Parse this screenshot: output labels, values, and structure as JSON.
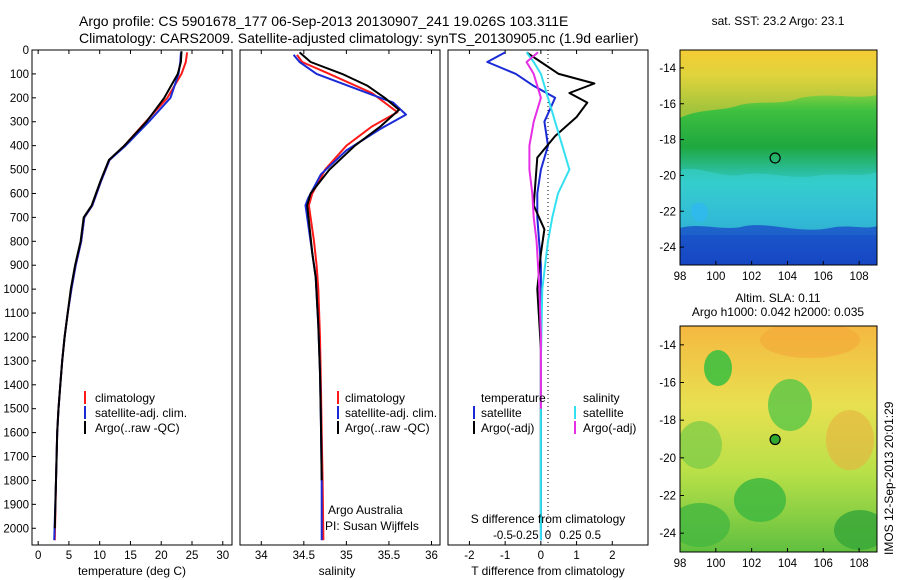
{
  "header": {
    "line1": "Argo profile: CS 5901678_177 06-Sep-2013 20130907_241 19.026S 103.311E",
    "line2": "Climatology: CARS2009. Satellite-adjusted climatology: synTS_20130905.nc (1.9d earlier)"
  },
  "colors": {
    "climatology": "#ff1a1a",
    "satellite": "#1a2bd6",
    "argo": "#000000",
    "satellite_s": "#33e0f0",
    "argo_s": "#e62ee6"
  },
  "chart_data": [
    {
      "id": "temperature",
      "type": "line",
      "xlabel": "temperature (deg C)",
      "xlim": [
        -1,
        31.5
      ],
      "ylim": [
        0,
        2070
      ],
      "xticks": [
        0,
        5,
        10,
        15,
        20,
        25,
        30
      ],
      "yticks": [
        0,
        100,
        200,
        300,
        400,
        500,
        600,
        700,
        800,
        900,
        1000,
        1100,
        1200,
        1300,
        1400,
        1500,
        1600,
        1700,
        1800,
        1900,
        2000
      ],
      "legend": [
        "climatology",
        "satellite-adj. clim.",
        "Argo(..raw -QC)"
      ],
      "series": [
        {
          "name": "climatology",
          "color": "#ff1a1a",
          "x": [
            24.2,
            24.0,
            23.3,
            21.0,
            17.5,
            14.0,
            11.6,
            10.2,
            8.8,
            7.5,
            7.0,
            6.1,
            5.4,
            4.8,
            4.3,
            3.9,
            3.6,
            3.3,
            3.1,
            2.9,
            2.7
          ],
          "y": [
            10,
            50,
            100,
            200,
            300,
            400,
            460,
            550,
            650,
            700,
            800,
            900,
            1000,
            1100,
            1200,
            1300,
            1400,
            1500,
            1600,
            1800,
            2050
          ]
        },
        {
          "name": "satellite-adj. clim.",
          "color": "#1a2bd6",
          "x": [
            23.2,
            23.1,
            22.8,
            21.5,
            18.0,
            14.2,
            11.6,
            10.2,
            8.8,
            7.5,
            7.0,
            6.1,
            5.4,
            4.8,
            4.3,
            3.9,
            3.6,
            3.3,
            3.1,
            2.9,
            2.6
          ],
          "y": [
            10,
            50,
            100,
            200,
            300,
            400,
            460,
            550,
            650,
            700,
            800,
            900,
            1000,
            1100,
            1200,
            1300,
            1400,
            1500,
            1600,
            1800,
            2050
          ]
        },
        {
          "name": "Argo",
          "color": "#000000",
          "x": [
            23.3,
            23.2,
            22.7,
            20.5,
            17.6,
            14.0,
            11.5,
            10.1,
            8.7,
            7.4,
            6.9,
            6.0,
            5.3,
            4.8,
            4.3,
            3.9,
            3.6,
            3.3,
            3.1,
            2.9,
            2.7
          ],
          "y": [
            5,
            50,
            100,
            200,
            300,
            400,
            460,
            550,
            650,
            700,
            800,
            900,
            1000,
            1100,
            1200,
            1300,
            1400,
            1500,
            1600,
            1800,
            2000
          ]
        }
      ]
    },
    {
      "id": "salinity",
      "type": "line",
      "xlabel": "salinity",
      "xlim": [
        33.75,
        36.1
      ],
      "ylim": [
        0,
        2070
      ],
      "xticks": [
        34,
        34.5,
        35,
        35.5,
        36
      ],
      "legend": [
        "climatology",
        "satellite-adj. clim.",
        "Argo(..raw -QC)"
      ],
      "annotation": [
        "Argo Australia",
        "PI: Susan Wijffels"
      ],
      "series": [
        {
          "name": "climatology",
          "color": "#ff1a1a",
          "x": [
            34.42,
            34.48,
            34.8,
            35.3,
            35.6,
            35.3,
            35.0,
            34.75,
            34.6,
            34.56,
            34.58,
            34.62,
            34.65,
            34.67,
            34.69,
            34.7,
            34.71,
            34.72,
            34.73
          ],
          "y": [
            20,
            50,
            100,
            180,
            260,
            320,
            400,
            500,
            600,
            650,
            700,
            800,
            900,
            1000,
            1200,
            1400,
            1600,
            1800,
            2050
          ]
        },
        {
          "name": "satellite-adj. clim.",
          "color": "#1a2bd6",
          "x": [
            34.38,
            34.45,
            34.65,
            35.1,
            35.55,
            35.7,
            35.4,
            35.0,
            34.7,
            34.55,
            34.52,
            34.56,
            34.6,
            34.64,
            34.67,
            34.69,
            34.7,
            34.71,
            34.71
          ],
          "y": [
            20,
            50,
            100,
            160,
            220,
            270,
            330,
            420,
            520,
            620,
            650,
            750,
            850,
            950,
            1150,
            1350,
            1550,
            1800,
            2050
          ]
        },
        {
          "name": "Argo",
          "color": "#000000",
          "x": [
            34.45,
            34.58,
            34.95,
            35.25,
            35.45,
            35.62,
            35.4,
            35.1,
            34.8,
            34.58,
            34.54,
            34.57,
            34.6,
            34.64,
            34.67,
            34.69,
            34.7,
            34.71
          ],
          "y": [
            10,
            50,
            100,
            150,
            200,
            250,
            320,
            400,
            500,
            600,
            650,
            750,
            850,
            950,
            1150,
            1350,
            1550,
            1800
          ]
        }
      ]
    },
    {
      "id": "difference",
      "type": "line",
      "xlabel": "T difference from climatology",
      "xlabel_top": "S difference from climatology",
      "xlim": [
        -2.6,
        3.0
      ],
      "ylim": [
        0,
        2070
      ],
      "xticks": [
        -2,
        -1,
        0,
        1,
        2
      ],
      "xticks_s": [
        -0.5,
        -0.25,
        0,
        0.25,
        0.5
      ],
      "legend_t": [
        "temperature",
        "satellite",
        "Argo(-adj)"
      ],
      "legend_s": [
        "salinity",
        "satellite",
        "Argo(-adj)"
      ],
      "series": [
        {
          "name": "T satellite",
          "color": "#1a2bd6",
          "x": [
            -1.0,
            -1.5,
            -0.7,
            -0.2,
            0.4,
            0.1,
            0.2,
            0.0,
            -0.1,
            -0.1,
            -0.05,
            0.0,
            0.0,
            0.0,
            0.0,
            0.0,
            0.0
          ],
          "y": [
            10,
            50,
            100,
            150,
            200,
            300,
            400,
            500,
            600,
            700,
            800,
            900,
            1000,
            1200,
            1500,
            1800,
            2050
          ]
        },
        {
          "name": "T Argo(-adj)",
          "color": "#000000",
          "x": [
            -0.4,
            0.0,
            0.5,
            1.5,
            0.8,
            1.3,
            1.0,
            0.4,
            -0.1,
            -0.2,
            0.1,
            0.0,
            -0.1,
            0.0,
            0.0,
            0.0,
            0.0
          ],
          "y": [
            10,
            50,
            100,
            140,
            180,
            220,
            280,
            360,
            450,
            650,
            750,
            850,
            1000,
            1250,
            1500,
            1800,
            2000
          ]
        },
        {
          "name": "S satellite",
          "color": "#33e0f0",
          "x": [
            -0.1,
            -0.05,
            0.0,
            0.05,
            0.1,
            0.15,
            0.2,
            0.12,
            0.08,
            0.05,
            0.03,
            0.01,
            0.0,
            0.0,
            0.0
          ],
          "y": [
            10,
            50,
            100,
            200,
            300,
            400,
            500,
            600,
            700,
            800,
            900,
            1000,
            1300,
            1700,
            2050
          ]
        },
        {
          "name": "S Argo(-adj)",
          "color": "#e62ee6",
          "x": [
            -0.02,
            -0.1,
            -0.05,
            0.0,
            -0.05,
            -0.08,
            -0.08,
            -0.06,
            -0.05,
            -0.03,
            -0.02,
            -0.01,
            0.0,
            0.0
          ],
          "y": [
            10,
            50,
            100,
            200,
            300,
            400,
            500,
            600,
            700,
            800,
            900,
            1000,
            1200,
            1500
          ]
        }
      ]
    },
    {
      "id": "sst_map",
      "type": "heatmap",
      "title": "sat. SST: 23.2  Argo: 23.1",
      "xticks": [
        "98",
        "100",
        "102",
        "104",
        "106",
        "108"
      ],
      "yticks": [
        "-14",
        "-16",
        "-18",
        "-20",
        "-22",
        "-24"
      ],
      "lon_range": [
        98,
        109
      ],
      "lat_range": [
        -25,
        -13
      ],
      "argo_position": {
        "lon": 103.311,
        "lat": -19.026
      }
    },
    {
      "id": "sla_map",
      "type": "heatmap",
      "title_line1": "Altim. SLA: 0.11",
      "title_line2": "Argo h1000: 0.042 h2000: 0.035",
      "xticks": [
        "98",
        "100",
        "102",
        "104",
        "106",
        "108"
      ],
      "yticks": [
        "-14",
        "-16",
        "-18",
        "-20",
        "-22",
        "-24"
      ],
      "lon_range": [
        98,
        109
      ],
      "lat_range": [
        -25,
        -13
      ],
      "argo_position": {
        "lon": 103.311,
        "lat": -19.026
      }
    }
  ],
  "side_stamp": "IMOS 12-Sep-2013 20:01:29"
}
